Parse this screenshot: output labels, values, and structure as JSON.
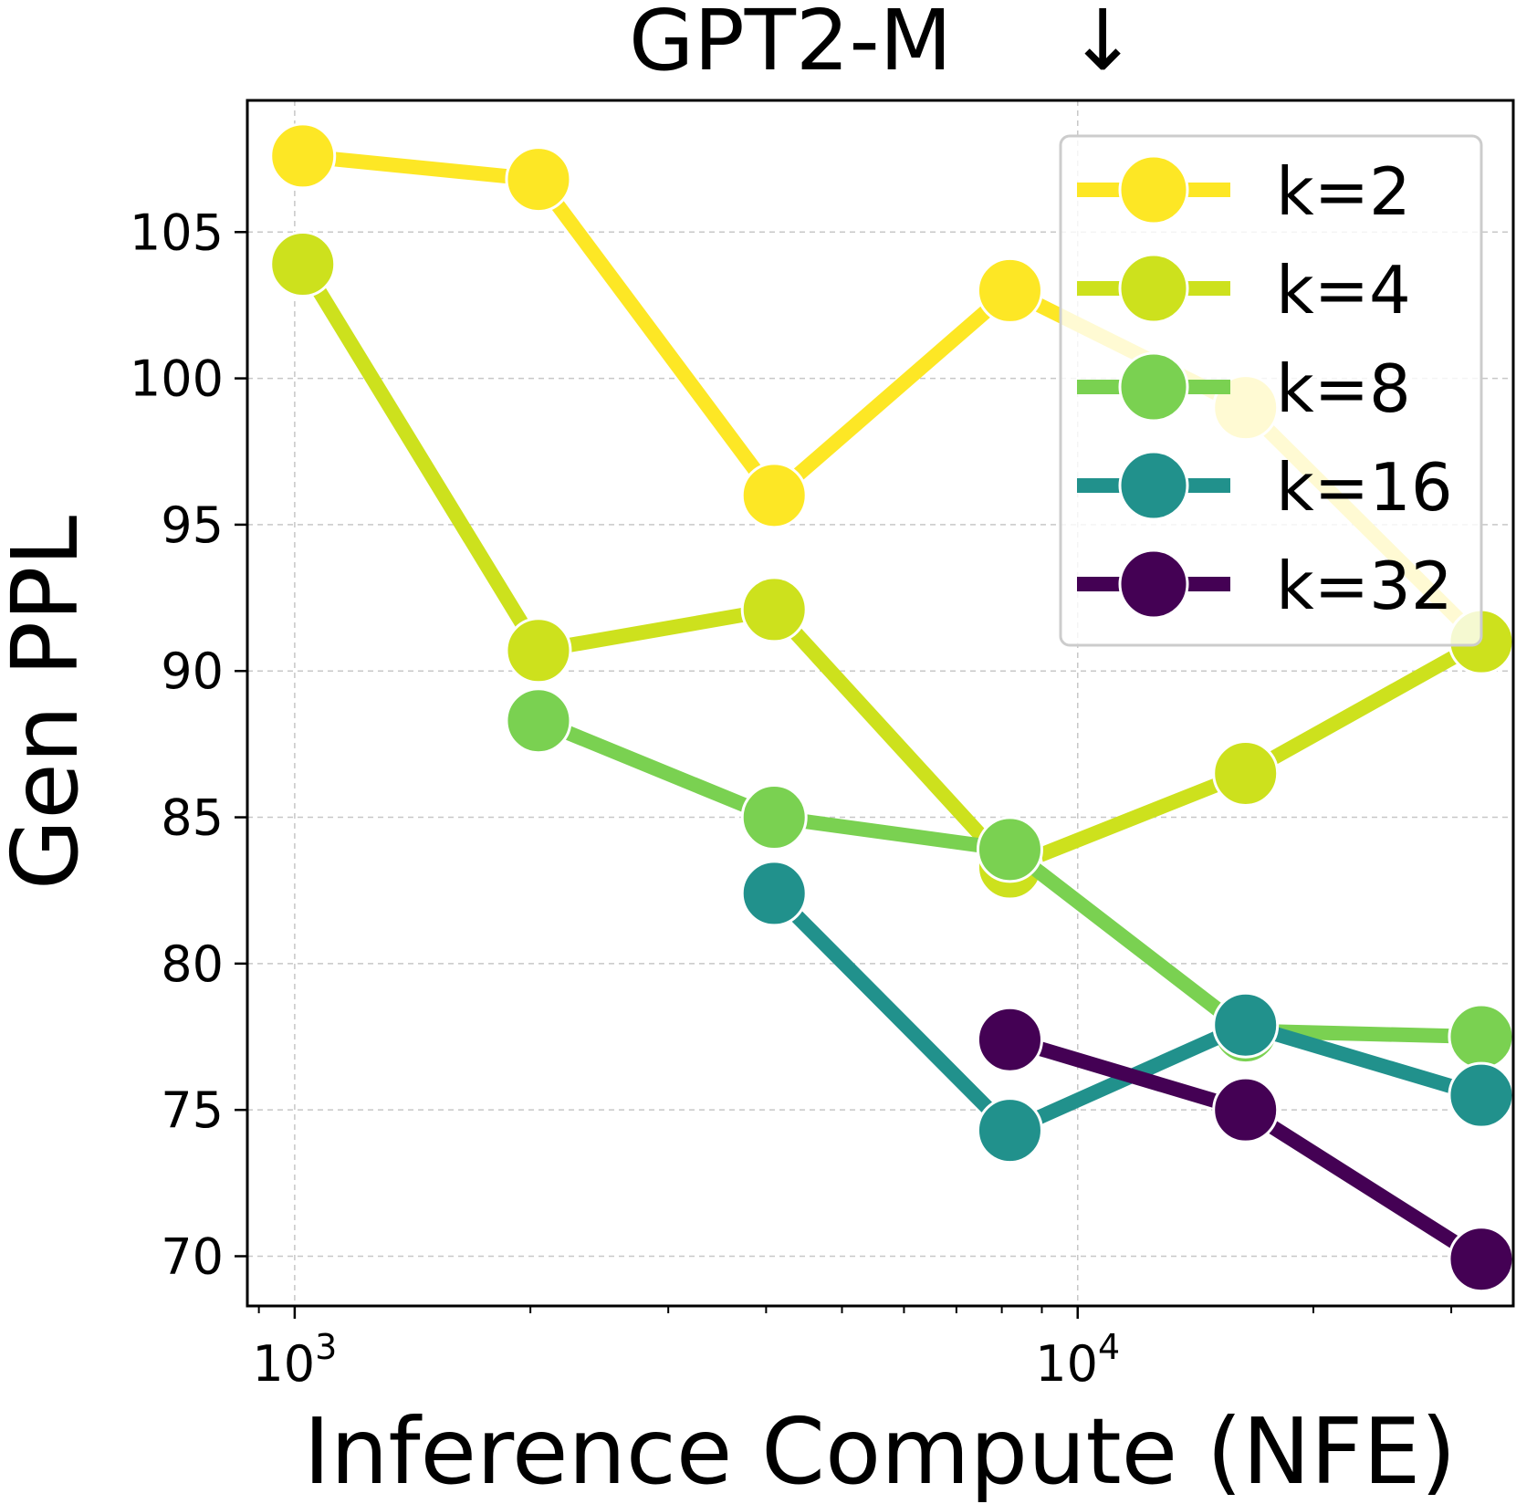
{
  "chart_data": {
    "type": "line",
    "title": "GPT2-M",
    "title_arrow": "↓",
    "xlabel": "Inference Compute (NFE)",
    "ylabel": "Gen PPL",
    "x_scale": "log",
    "xlim": [
      870,
      36000
    ],
    "ylim": [
      68.3,
      109.5
    ],
    "x_major_ticks": [
      {
        "value": 1000,
        "base": "10",
        "exp": "3"
      },
      {
        "value": 10000,
        "base": "10",
        "exp": "4"
      }
    ],
    "y_ticks": [
      70,
      75,
      80,
      85,
      90,
      95,
      100,
      105
    ],
    "grid": true,
    "legend_position": "upper right",
    "series": [
      {
        "name": "k=2",
        "color": "#fde725",
        "points": [
          [
            1024,
            107.6
          ],
          [
            2048,
            106.8
          ],
          [
            4096,
            96.0
          ],
          [
            8192,
            103.0
          ],
          [
            16384,
            99.0
          ],
          [
            32768,
            91.0
          ]
        ]
      },
      {
        "name": "k=4",
        "color": "#cde11d",
        "points": [
          [
            1024,
            103.9
          ],
          [
            2048,
            90.7
          ],
          [
            4096,
            92.1
          ],
          [
            8192,
            83.3
          ],
          [
            16384,
            86.5
          ],
          [
            32768,
            91.0
          ]
        ]
      },
      {
        "name": "k=8",
        "color": "#7ad151",
        "points": [
          [
            2048,
            88.3
          ],
          [
            4096,
            85.0
          ],
          [
            8192,
            83.9
          ],
          [
            16384,
            77.7
          ],
          [
            32768,
            77.5
          ]
        ]
      },
      {
        "name": "k=16",
        "color": "#21918c",
        "points": [
          [
            4096,
            82.4
          ],
          [
            8192,
            74.3
          ],
          [
            16384,
            77.9
          ],
          [
            32768,
            75.5
          ]
        ]
      },
      {
        "name": "k=32",
        "color": "#440154",
        "points": [
          [
            8192,
            77.4
          ],
          [
            16384,
            75.0
          ],
          [
            32768,
            69.9
          ]
        ]
      }
    ]
  }
}
